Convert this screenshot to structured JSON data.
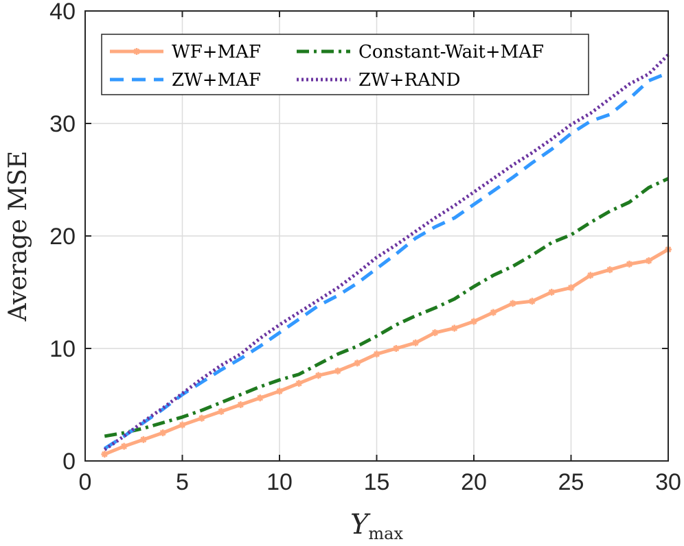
{
  "chart_data": {
    "type": "line",
    "title": "",
    "xlabel": {
      "main": "Y",
      "sub": "max"
    },
    "ylabel": "Average MSE",
    "xlim": [
      0,
      30
    ],
    "ylim": [
      0,
      40
    ],
    "xticks": [
      0,
      5,
      10,
      15,
      20,
      25,
      30
    ],
    "yticks": [
      0,
      10,
      20,
      30,
      40
    ],
    "grid": true,
    "legend_position": "top-left",
    "x": [
      1,
      2,
      3,
      4,
      5,
      6,
      7,
      8,
      9,
      10,
      11,
      12,
      13,
      14,
      15,
      16,
      17,
      18,
      19,
      20,
      21,
      22,
      23,
      24,
      25,
      26,
      27,
      28,
      29,
      30
    ],
    "series": [
      {
        "name": "WF+MAF",
        "color": "#FFAA80",
        "style": "solid-star",
        "values": [
          0.6,
          1.3,
          1.9,
          2.5,
          3.2,
          3.8,
          4.4,
          5.0,
          5.6,
          6.2,
          6.9,
          7.6,
          8.0,
          8.7,
          9.5,
          10.0,
          10.5,
          11.4,
          11.8,
          12.4,
          13.2,
          14.0,
          14.2,
          15.0,
          15.4,
          16.5,
          17.0,
          17.5,
          17.8,
          18.8
        ]
      },
      {
        "name": "Constant-Wait+MAF",
        "color": "#1F7A1F",
        "style": "dash-dot",
        "values": [
          2.2,
          2.5,
          2.9,
          3.4,
          3.9,
          4.5,
          5.2,
          5.9,
          6.6,
          7.2,
          7.7,
          8.6,
          9.5,
          10.2,
          11.1,
          12.1,
          12.9,
          13.6,
          14.4,
          15.5,
          16.5,
          17.3,
          18.3,
          19.4,
          20.1,
          21.2,
          22.2,
          23.0,
          24.3,
          25.1
        ]
      },
      {
        "name": "ZW+MAF",
        "color": "#3399FF",
        "style": "dashed",
        "values": [
          1.1,
          2.2,
          3.4,
          4.6,
          5.9,
          7.0,
          8.1,
          9.1,
          10.2,
          11.4,
          12.6,
          13.8,
          14.7,
          15.8,
          17.1,
          18.4,
          19.8,
          20.8,
          21.6,
          22.8,
          24.0,
          25.2,
          26.5,
          27.7,
          29.1,
          30.2,
          30.8,
          32.2,
          33.8,
          34.5
        ]
      },
      {
        "name": "ZW+RAND",
        "color": "#6B35A0",
        "style": "dotted",
        "values": [
          1.0,
          2.2,
          3.5,
          4.7,
          6.0,
          7.3,
          8.5,
          9.5,
          10.9,
          12.1,
          13.2,
          14.3,
          15.4,
          16.7,
          18.1,
          19.2,
          20.4,
          21.6,
          22.7,
          23.9,
          25.1,
          26.3,
          27.4,
          28.6,
          29.9,
          30.9,
          32.2,
          33.5,
          34.4,
          36.1
        ]
      }
    ]
  }
}
